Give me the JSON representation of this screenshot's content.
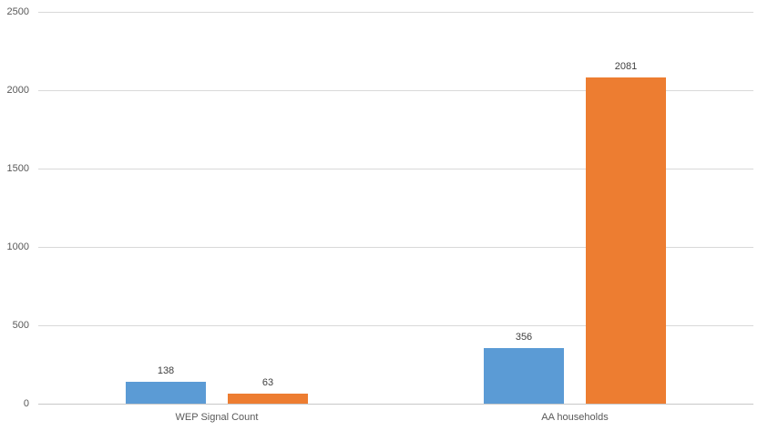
{
  "chart_data": {
    "type": "bar",
    "title": "",
    "xlabel": "",
    "ylabel": "",
    "categories": [
      "WEP Signal Count",
      "AA households"
    ],
    "series": [
      {
        "name": "",
        "color": "#5B9BD5",
        "values": [
          138,
          356
        ]
      },
      {
        "name": "",
        "color": "#ED7D31",
        "values": [
          63,
          2081
        ]
      }
    ],
    "data_labels": [
      [
        "138",
        "356"
      ],
      [
        "63",
        "2081"
      ]
    ],
    "ylim": [
      0,
      2500
    ],
    "ytick_step": 500,
    "ytick_labels": [
      "0",
      "500",
      "1000",
      "1500",
      "2000",
      "2500"
    ],
    "grid": true,
    "legend": "none",
    "colors": {
      "gridline": "#d9d9d9",
      "axis_line": "#c8c8c8",
      "tick_label": "#595959",
      "data_label": "#404040",
      "background": "#ffffff"
    }
  }
}
